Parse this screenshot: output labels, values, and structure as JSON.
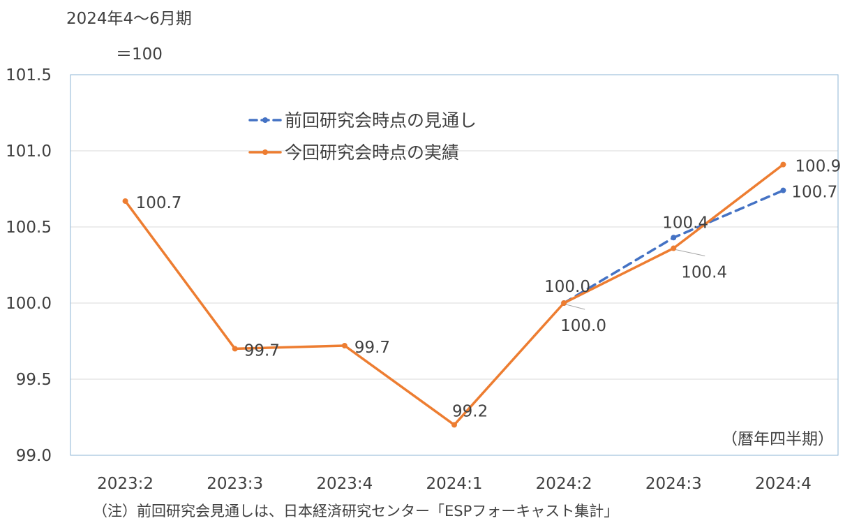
{
  "chart_data": {
    "type": "line",
    "unit_label_line1": "2024年4〜6月期",
    "unit_label_line2": "＝100",
    "period_label": "（暦年四半期）",
    "note": "（注）前回研究会見通しは、日本経済研究センター「ESPフォーキャスト集計」",
    "categories": [
      "2023:2",
      "2023:3",
      "2023:4",
      "2024:1",
      "2024:2",
      "2024:3",
      "2024:4"
    ],
    "ylim": [
      99.0,
      101.5
    ],
    "yticks": [
      "99.0",
      "99.5",
      "100.0",
      "100.5",
      "101.0",
      "101.5"
    ],
    "grid": true,
    "legend_position": "top-center",
    "series": [
      {
        "name": "前回研究会時点の見通し",
        "style": "dashed",
        "color": "#4472C4",
        "start_index": 4,
        "values": [
          null,
          null,
          null,
          null,
          100.0,
          100.43,
          100.74
        ],
        "labels": [
          null,
          null,
          null,
          null,
          "100.0",
          "100.4",
          "100.7"
        ]
      },
      {
        "name": "今回研究会時点の実績",
        "style": "solid",
        "color": "#ED7D31",
        "values": [
          100.67,
          99.7,
          99.72,
          99.2,
          100.0,
          100.36,
          100.91
        ],
        "labels": [
          "100.7",
          "99.7",
          "99.7",
          "99.2",
          "100.0",
          "100.4",
          "100.9"
        ]
      }
    ]
  }
}
